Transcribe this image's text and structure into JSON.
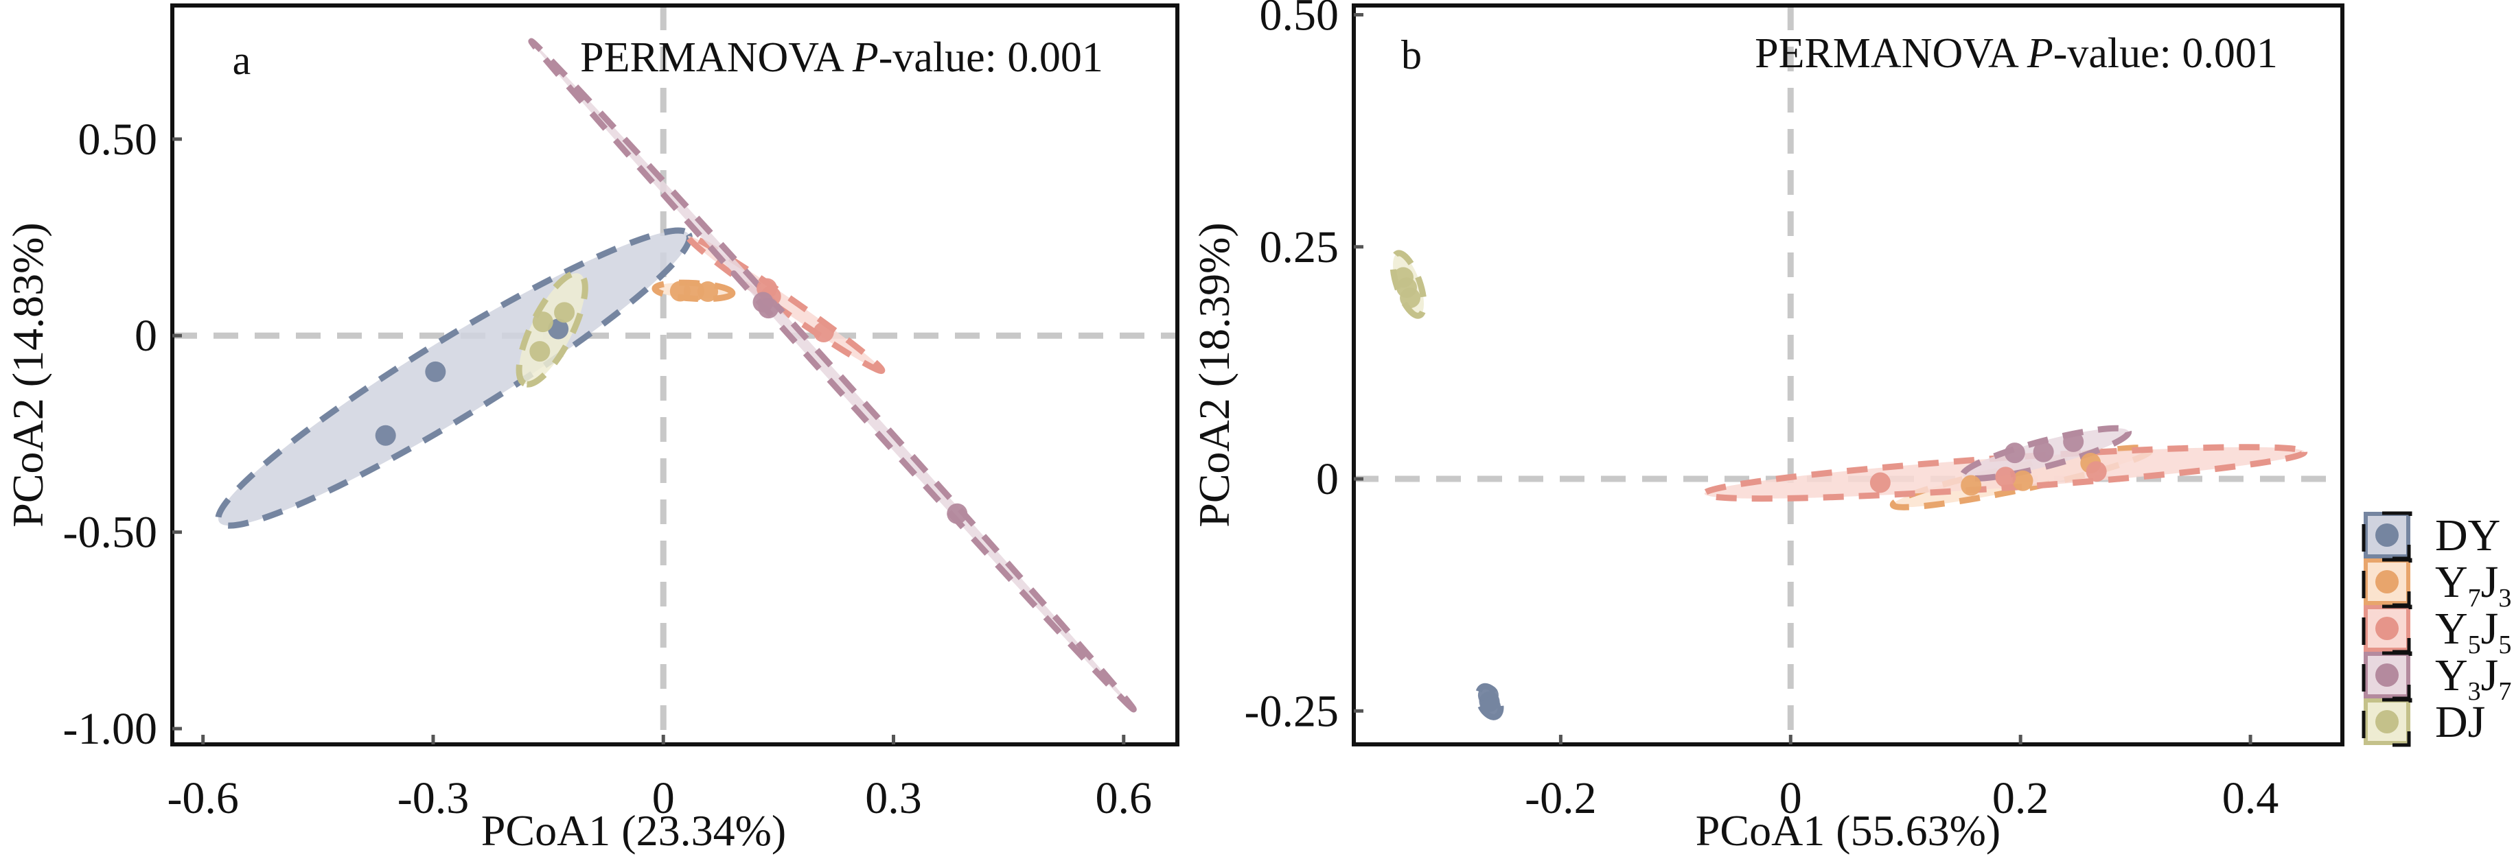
{
  "legend": {
    "items": [
      {
        "key": "DY",
        "base": "DY",
        "parts": [
          {
            "t": "DY",
            "sub": false
          }
        ],
        "color": "#7585a0",
        "fill": "#d0d3df"
      },
      {
        "key": "Y7J3",
        "parts": [
          {
            "t": "Y",
            "sub": false
          },
          {
            "t": "7",
            "sub": true
          },
          {
            "t": "J",
            "sub": false
          },
          {
            "t": "3",
            "sub": true
          }
        ],
        "color": "#e8a56c",
        "fill": "#fbe3ce"
      },
      {
        "key": "Y5J5",
        "parts": [
          {
            "t": "Y",
            "sub": false
          },
          {
            "t": "5",
            "sub": true
          },
          {
            "t": "J",
            "sub": false
          },
          {
            "t": "5",
            "sub": true
          }
        ],
        "color": "#e6958a",
        "fill": "#f9d9d3"
      },
      {
        "key": "Y3J7",
        "parts": [
          {
            "t": "Y",
            "sub": false
          },
          {
            "t": "3",
            "sub": true
          },
          {
            "t": "J",
            "sub": false
          },
          {
            "t": "7",
            "sub": true
          }
        ],
        "color": "#b48a9e",
        "fill": "#e8d8df"
      },
      {
        "key": "DJ",
        "parts": [
          {
            "t": "DJ",
            "sub": false
          }
        ],
        "color": "#c4c18a",
        "fill": "#eeecd2"
      }
    ],
    "placement": "right-bottom"
  },
  "chart_data": [
    {
      "type": "scatter",
      "panel_label": "a",
      "annotation_prefix": "PERMANOVA ",
      "annotation_italic": "P",
      "annotation_suffix": "-value: 0.001",
      "xlabel": "PCoA1 (23.34%)",
      "ylabel": "PCoA2 (14.83%)",
      "xticks": [
        -0.6,
        -0.3,
        0,
        0.3,
        0.6
      ],
      "xtick_labels": [
        "-0.6",
        "-0.3",
        "0",
        "0.3",
        "0.6"
      ],
      "yticks": [
        0.5,
        0,
        -0.5,
        -1.0
      ],
      "ytick_labels": [
        "0.50",
        "0",
        "-0.50",
        "-1.00"
      ],
      "xlim": [
        -0.64,
        0.67
      ],
      "ylim": [
        -1.04,
        0.84
      ],
      "reference_lines": {
        "x": 0,
        "y": 0
      },
      "series": [
        {
          "name": "DY",
          "points": [
            [
              -0.297,
              -0.092
            ],
            [
              -0.362,
              -0.254
            ],
            [
              -0.137,
              0.017
            ]
          ],
          "ellipse": {
            "tip1": [
              -0.579,
              -0.474
            ],
            "tip2": [
              0.033,
              0.258
            ],
            "minor_ratio": 0.14
          }
        },
        {
          "name": "Y7J3",
          "points": [
            [
              0.022,
              0.113
            ],
            [
              0.04,
              0.113
            ],
            [
              0.058,
              0.112
            ]
          ],
          "ellipse": {
            "tip1": [
              -0.011,
              0.12
            ],
            "tip2": [
              0.09,
              0.108
            ],
            "minor_ratio": 0.2
          }
        },
        {
          "name": "Y5J5",
          "points": [
            [
              0.135,
              0.12
            ],
            [
              0.209,
              0.009
            ],
            [
              0.14,
              0.1
            ]
          ],
          "ellipse": {
            "tip1": [
              0.032,
              0.253
            ],
            "tip2": [
              0.285,
              -0.089
            ],
            "minor_ratio": 0.06
          }
        },
        {
          "name": "Y3J7",
          "points": [
            [
              0.137,
              0.07
            ],
            [
              0.383,
              -0.453
            ],
            [
              0.13,
              0.085
            ]
          ],
          "ellipse": {
            "tip1": [
              -0.172,
              0.749
            ],
            "tip2": [
              0.613,
              -0.951
            ],
            "minor_ratio": 0.012
          }
        },
        {
          "name": "DJ",
          "points": [
            [
              -0.129,
              0.059
            ],
            [
              -0.157,
              0.035
            ],
            [
              -0.161,
              -0.04
            ]
          ],
          "ellipse": {
            "tip1": [
              -0.109,
              0.157
            ],
            "tip2": [
              -0.181,
              -0.122
            ],
            "minor_ratio": 0.33
          }
        }
      ]
    },
    {
      "type": "scatter",
      "panel_label": "b",
      "annotation_prefix": "PERMANOVA ",
      "annotation_italic": "P",
      "annotation_suffix": "-value: 0.001",
      "xlabel": "PCoA1 (55.63%)",
      "ylabel": "PCoA2 (18.39%)",
      "xticks": [
        -0.2,
        0,
        0.2,
        0.4
      ],
      "xtick_labels": [
        "-0.2",
        "0",
        "0.2",
        "0.4"
      ],
      "yticks": [
        0.5,
        0.25,
        0,
        -0.25
      ],
      "ytick_labels": [
        "0.50",
        "0.25",
        "0",
        "-0.25"
      ],
      "xlim": [
        -0.38,
        0.48
      ],
      "ylim": [
        -0.286,
        0.51
      ],
      "reference_lines": {
        "x": 0,
        "y": 0
      },
      "series": [
        {
          "name": "DY",
          "points": [
            [
              -0.263,
              -0.233
            ],
            [
              -0.262,
              -0.24
            ],
            [
              -0.261,
              -0.246
            ]
          ],
          "ellipse": {
            "tip1": [
              -0.268,
              -0.224
            ],
            "tip2": [
              -0.256,
              -0.256
            ],
            "minor_ratio": 0.6
          }
        },
        {
          "name": "Y7J3",
          "points": [
            [
              0.157,
              -0.007
            ],
            [
              0.202,
              -0.002
            ],
            [
              0.261,
              0.017
            ]
          ],
          "ellipse": {
            "tip1": [
              0.089,
              -0.028
            ],
            "tip2": [
              0.313,
              0.031
            ],
            "minor_ratio": 0.09
          }
        },
        {
          "name": "Y5J5",
          "points": [
            [
              0.078,
              -0.004
            ],
            [
              0.187,
              0.002
            ],
            [
              0.266,
              0.008
            ]
          ],
          "ellipse": {
            "tip1": [
              -0.075,
              -0.016
            ],
            "tip2": [
              0.447,
              0.029
            ],
            "minor_ratio": 0.05
          }
        },
        {
          "name": "Y3J7",
          "points": [
            [
              0.195,
              0.028
            ],
            [
              0.22,
              0.029
            ],
            [
              0.246,
              0.04
            ]
          ],
          "ellipse": {
            "tip1": [
              0.15,
              0.004
            ],
            "tip2": [
              0.294,
              0.051
            ],
            "minor_ratio": 0.15
          }
        },
        {
          "name": "DJ",
          "points": [
            [
              -0.337,
              0.217
            ],
            [
              -0.334,
              0.206
            ],
            [
              -0.331,
              0.195
            ]
          ],
          "ellipse": {
            "tip1": [
              -0.342,
              0.243
            ],
            "tip2": [
              -0.323,
              0.176
            ],
            "minor_ratio": 0.35
          }
        }
      ]
    }
  ]
}
